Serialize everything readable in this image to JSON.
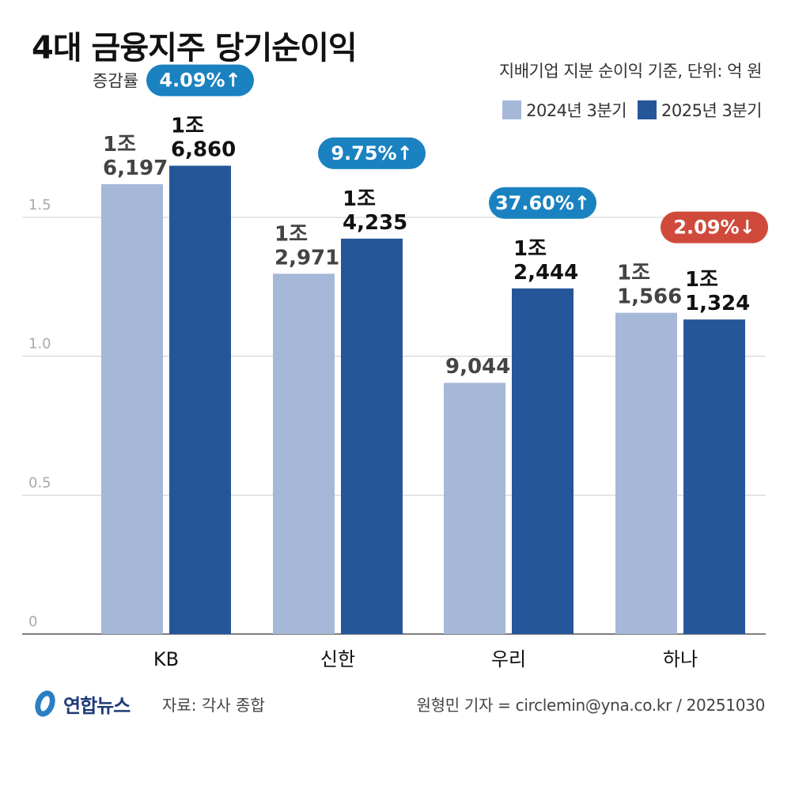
{
  "title": "4대 금융지주 당기순이익",
  "subtitle": "지배기업 지분 순이익 기준, 단위: 억 원",
  "legend": [
    {
      "label": "2024년 3분기",
      "color": "#a6b8d8"
    },
    {
      "label": "2025년 3분기",
      "color": "#26569a"
    }
  ],
  "change_label": "증감률",
  "footer": {
    "logo": "연합뉴스",
    "source": "자료: 각사 종합",
    "credit": "원형민 기자 = circlemin@yna.co.kr / 20251030"
  },
  "chart_data": {
    "type": "bar",
    "categories": [
      "KB",
      "신한",
      "우리",
      "하나"
    ],
    "y_ticks": [
      "0",
      "0.5",
      "1.0",
      "1.5"
    ],
    "y_tick_values": [
      0,
      0.5,
      1.0,
      1.5
    ],
    "ylim": [
      0,
      1.85
    ],
    "series": [
      {
        "name": "2024년 3분기",
        "color": "#a6b8d8",
        "values": [
          1.6197,
          1.2971,
          0.9044,
          1.1566
        ],
        "labels": [
          [
            "1조",
            "6,197"
          ],
          [
            "1조",
            "2,971"
          ],
          [
            "9,044"
          ],
          [
            "1조",
            "1,566"
          ]
        ],
        "label_color": "#444444"
      },
      {
        "name": "2025년 3분기",
        "color": "#26569a",
        "values": [
          1.686,
          1.4235,
          1.2444,
          1.1324
        ],
        "labels": [
          [
            "1조",
            "6,860"
          ],
          [
            "1조",
            "4,235"
          ],
          [
            "1조",
            "2,444"
          ],
          [
            "1조",
            "1,324"
          ]
        ],
        "label_color": "#111111"
      }
    ],
    "changes": [
      {
        "text": "4.09%↑",
        "direction": "up",
        "color": "#1a82c0"
      },
      {
        "text": "9.75%↑",
        "direction": "up",
        "color": "#1a82c0"
      },
      {
        "text": "37.60%↑",
        "direction": "up",
        "color": "#1a82c0"
      },
      {
        "text": "2.09%↓",
        "direction": "down",
        "color": "#d04a3c"
      }
    ]
  }
}
